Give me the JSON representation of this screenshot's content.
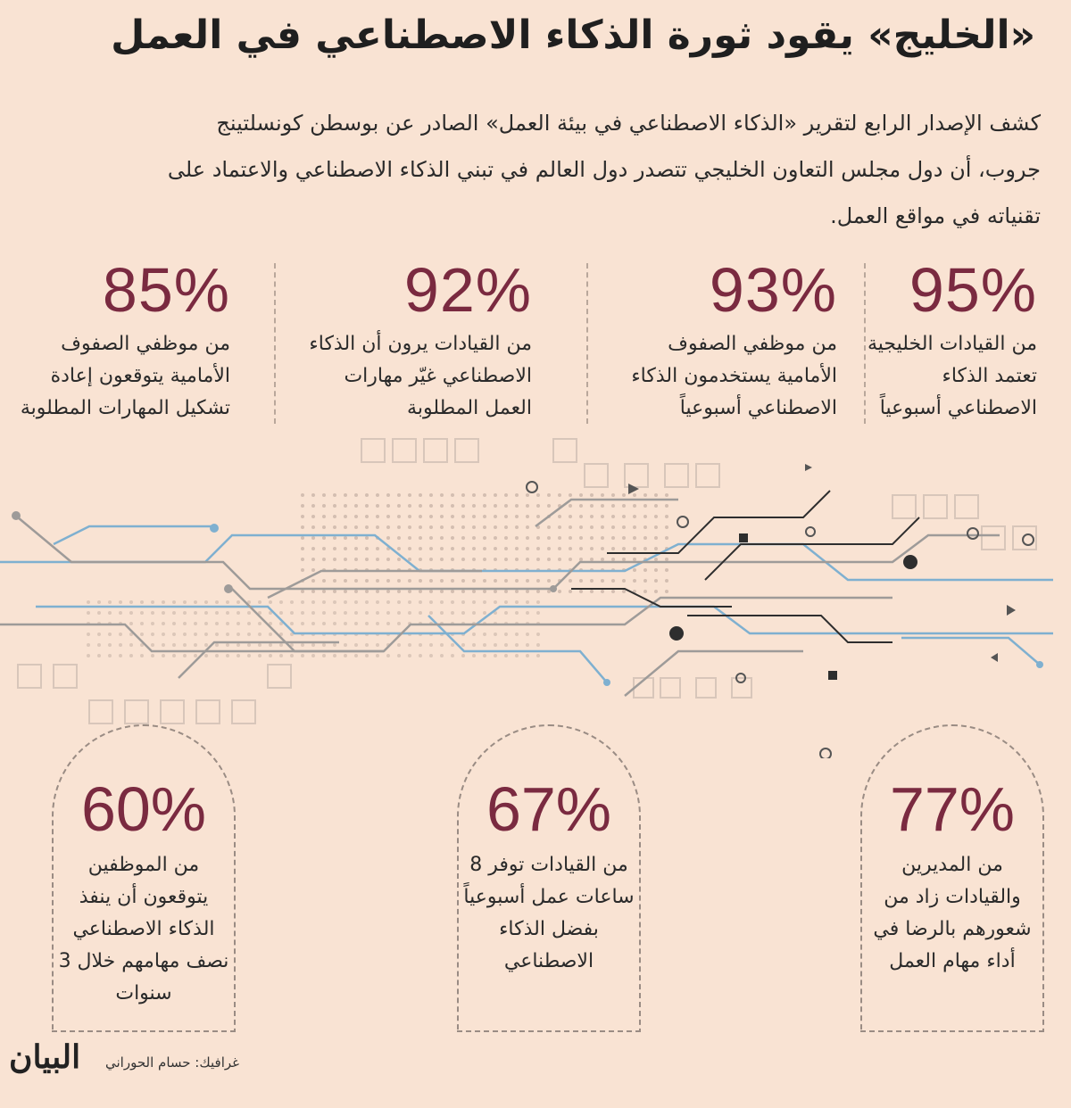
{
  "title": "«الخليج» يقود ثورة الذكاء الاصطناعي في العمل",
  "intro": "كشف الإصدار الرابع لتقرير «الذكاء الاصطناعي في بيئة العمل» الصادر عن بوسطن كونسلتينج جروب، أن دول مجلس التعاون الخليجي تتصدر دول العالم في تبني الذكاء الاصطناعي والاعتماد على تقنياته في مواقع العمل.",
  "top_stats": [
    {
      "pct": "95%",
      "desc": "من القيادات الخليجية تعتمد الذكاء الاصطناعي أسبوعياً"
    },
    {
      "pct": "93%",
      "desc": "من موظفي الصفوف الأمامية يستخدمون الذكاء الاصطناعي أسبوعياً"
    },
    {
      "pct": "92%",
      "desc": "من القيادات يرون أن الذكاء الاصطناعي غيّر مهارات العمل المطلوبة"
    },
    {
      "pct": "85%",
      "desc": "من موظفي الصفوف الأمامية يتوقعون إعادة تشكيل المهارات المطلوبة"
    }
  ],
  "bottom_stats": [
    {
      "pct": "77%",
      "desc": "من المديرين والقيادات زاد من شعورهم بالرضا في أداء مهام العمل"
    },
    {
      "pct": "67%",
      "desc": "من القيادات توفر 8 ساعات عمل أسبوعياً بفضل الذكاء الاصطناعي"
    },
    {
      "pct": "60%",
      "desc": "من الموظفين يتوقعون أن ينفذ الذكاء الاصطناعي نصف مهامهم خلال 3 سنوات"
    }
  ],
  "credit": "غرافيك: حسام الحوراني",
  "logo": "البيان",
  "colors": {
    "background": "#f9e3d3",
    "accent": "#7a2a40",
    "circuit_blue": "#6fa8cc",
    "circuit_dark": "#2e2e2e"
  }
}
